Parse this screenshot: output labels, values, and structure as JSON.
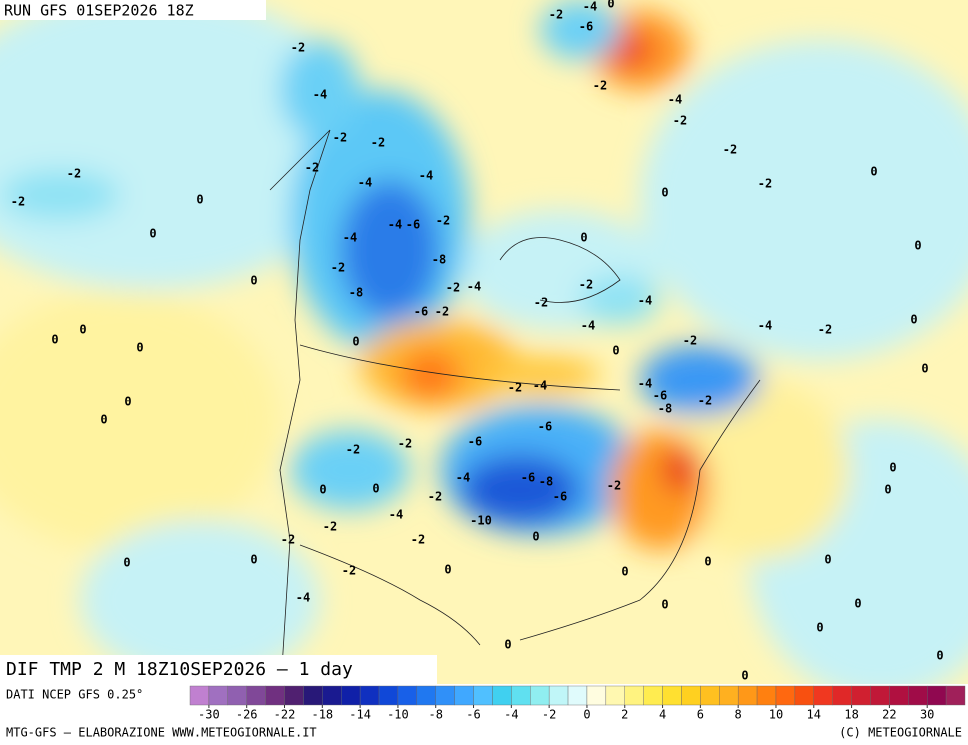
{
  "header": {
    "title": "RUN GFS 01SEP2026 18Z"
  },
  "map": {
    "caption": "DIF TMP 2 M 18Z10SEP2026 – 1 day",
    "contour_labels": [
      -2,
      -4,
      -2,
      -2,
      -2,
      -4,
      -4,
      -2,
      -2,
      0,
      0,
      -2,
      -4,
      -6,
      -4,
      -2,
      -8,
      -8,
      -2,
      -4,
      -6,
      -2,
      0,
      -2,
      -2,
      -4,
      -4,
      -2,
      0,
      -2,
      -4,
      -4,
      -6,
      -8,
      -2,
      -6,
      -6,
      -2,
      -2,
      -4,
      -6,
      -8,
      -6,
      -2,
      -2,
      -4,
      -10,
      -2,
      -2,
      -2,
      -2,
      -4,
      0,
      0,
      0,
      0,
      0,
      0,
      0,
      0,
      0,
      0,
      0,
      -4,
      -2,
      -2,
      -2,
      -6,
      -2,
      -4,
      -2,
      -4,
      -2,
      0,
      0,
      0,
      0,
      0,
      0,
      0,
      0,
      0,
      0,
      0,
      0,
      0,
      0,
      0,
      0,
      0,
      0,
      0
    ]
  },
  "legend": {
    "source": "DATI NCEP GFS 0.25°",
    "colors": [
      "#c080d0",
      "#a070c0",
      "#9060b0",
      "#804898",
      "#703080",
      "#502070",
      "#281878",
      "#1a1a90",
      "#1020a8",
      "#1030c0",
      "#1048d8",
      "#1860e8",
      "#2078f0",
      "#3090f8",
      "#40a8ff",
      "#50c0ff",
      "#40d0f0",
      "#60e0f0",
      "#90eef0",
      "#c0f6f8",
      "#e0fbfc",
      "#fffde0",
      "#fff8b0",
      "#fff380",
      "#ffec50",
      "#ffe030",
      "#ffd020",
      "#ffc020",
      "#ffb020",
      "#ff9818",
      "#ff8010",
      "#ff6810",
      "#f85010",
      "#f03820",
      "#e02828",
      "#d02030",
      "#c01838",
      "#b01040",
      "#a00c48",
      "#900850",
      "#a0205a"
    ],
    "ticks": [
      -30,
      -26,
      -22,
      -18,
      -14,
      -10,
      -8,
      -6,
      -4,
      -2,
      0,
      2,
      4,
      6,
      8,
      10,
      14,
      18,
      22,
      30
    ]
  },
  "footer": {
    "left": "MTG-GFS – ELABORAZIONE WWW.METEOGIORNALE.IT",
    "right": "(C) METEOGIORNALE"
  }
}
